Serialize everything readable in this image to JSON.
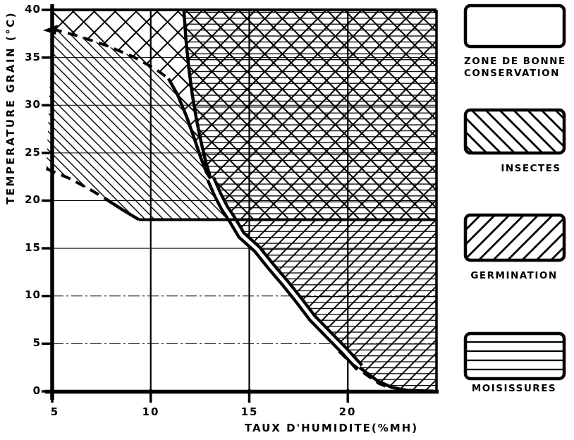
{
  "colors": {
    "ink": "#000000",
    "background": "#ffffff"
  },
  "chart_data": {
    "type": "area",
    "title": "",
    "xlabel": "TAUX D'HUMIDITE(%MH)",
    "ylabel": "TEMPERATURE GRAIN (°C)",
    "xlim": [
      5,
      24.5
    ],
    "ylim": [
      0,
      40
    ],
    "x_ticks": [
      5,
      10,
      15,
      20
    ],
    "y_ticks": [
      0,
      5,
      10,
      15,
      20,
      25,
      30,
      35,
      40
    ],
    "grid": true,
    "legend_position": "right",
    "zones": [
      {
        "name": "danger-cross-hatch-top-left",
        "patterns": [
          "cross-large"
        ],
        "points": [
          [
            5,
            40
          ],
          [
            5,
            38
          ],
          [
            6.25,
            37.3
          ],
          [
            7.7,
            36.3
          ],
          [
            9.1,
            35.1
          ],
          [
            10.25,
            33.8
          ],
          [
            10.9,
            32.8
          ],
          [
            11.36,
            31.1
          ],
          [
            11.8,
            28.9
          ],
          [
            12.18,
            26.7
          ],
          [
            12.54,
            24.5
          ],
          [
            12.82,
            23
          ],
          [
            13.04,
            22.3
          ],
          [
            12.79,
            24.1
          ],
          [
            12.57,
            26
          ],
          [
            12.32,
            28.5
          ],
          [
            12.11,
            31.1
          ],
          [
            11.93,
            33.9
          ],
          [
            11.79,
            36.8
          ],
          [
            11.68,
            40
          ]
        ]
      },
      {
        "name": "insectes-germination-moisissures-overlap",
        "patterns": [
          "cross-med",
          "horizontal"
        ],
        "points": [
          [
            11.68,
            40
          ],
          [
            11.79,
            36.8
          ],
          [
            11.93,
            33.9
          ],
          [
            12.11,
            31.1
          ],
          [
            12.32,
            28.5
          ],
          [
            12.57,
            26
          ],
          [
            12.79,
            24.1
          ],
          [
            13.04,
            22.3
          ],
          [
            13.4,
            20.6
          ],
          [
            13.75,
            19.2
          ],
          [
            14.15,
            17.97
          ],
          [
            24.5,
            17.97
          ],
          [
            24.5,
            40
          ]
        ]
      },
      {
        "name": "insectes-zone",
        "patterns": [
          "backslash"
        ],
        "points": [
          [
            5,
            38
          ],
          [
            6.25,
            37.3
          ],
          [
            7.7,
            36.3
          ],
          [
            9.1,
            35.1
          ],
          [
            10.25,
            33.8
          ],
          [
            10.9,
            32.8
          ],
          [
            11.36,
            31.1
          ],
          [
            11.8,
            28.9
          ],
          [
            12.18,
            26.7
          ],
          [
            12.54,
            24.5
          ],
          [
            12.82,
            23
          ],
          [
            13.04,
            22.3
          ],
          [
            13.4,
            20.6
          ],
          [
            13.75,
            19.2
          ],
          [
            14.15,
            17.97
          ],
          [
            9.4,
            18
          ],
          [
            8.6,
            19
          ],
          [
            7.7,
            20.2
          ],
          [
            6.9,
            21.2
          ],
          [
            5.9,
            22.3
          ],
          [
            4.7,
            23.35
          ]
        ]
      },
      {
        "name": "germination-moisissures-zone",
        "patterns": [
          "forwardslash",
          "horizontal"
        ],
        "points": [
          [
            14.15,
            17.97
          ],
          [
            14.6,
            16.4
          ],
          [
            15.4,
            14.9
          ],
          [
            16.1,
            13.1
          ],
          [
            16.8,
            11.4
          ],
          [
            17.5,
            9.6
          ],
          [
            18.2,
            7.7
          ],
          [
            19,
            6
          ],
          [
            19.8,
            4.3
          ],
          [
            20.6,
            2.5
          ],
          [
            21.5,
            1.1
          ],
          [
            22.25,
            0.4
          ],
          [
            23,
            0.1
          ],
          [
            24.35,
            0.02
          ],
          [
            24.5,
            0
          ],
          [
            24.5,
            17.97
          ]
        ]
      },
      {
        "name": "zone-bonne-conservation",
        "patterns": [],
        "points": []
      }
    ],
    "curves": [
      {
        "name": "insectes-upper-limit-dashed",
        "style": "dashed",
        "points": [
          [
            5,
            38
          ],
          [
            6.25,
            37.3
          ],
          [
            7.7,
            36.3
          ],
          [
            9.1,
            35.1
          ],
          [
            10.25,
            33.8
          ],
          [
            10.9,
            32.8
          ]
        ]
      },
      {
        "name": "insectes-upper-limit-solid",
        "style": "solid",
        "points": [
          [
            10.9,
            32.8
          ],
          [
            11.36,
            31.1
          ],
          [
            11.8,
            28.9
          ],
          [
            12.18,
            26.7
          ],
          [
            12.54,
            24.5
          ],
          [
            12.82,
            23
          ],
          [
            13.04,
            22.3
          ]
        ]
      },
      {
        "name": "conservation-steep-boundary",
        "style": "solid",
        "points": [
          [
            11.68,
            40
          ],
          [
            11.79,
            36.8
          ],
          [
            11.93,
            33.9
          ],
          [
            12.11,
            31.1
          ],
          [
            12.32,
            28.5
          ],
          [
            12.57,
            26
          ],
          [
            12.79,
            24.1
          ],
          [
            13.04,
            22.3
          ]
        ]
      },
      {
        "name": "conservation-main-boundary",
        "style": "double",
        "points": [
          [
            13.04,
            22.3
          ],
          [
            13.4,
            20.6
          ],
          [
            13.75,
            19.2
          ],
          [
            14.15,
            17.97
          ],
          [
            14.6,
            16.4
          ],
          [
            15.4,
            14.9
          ],
          [
            16.1,
            13.1
          ],
          [
            16.8,
            11.4
          ],
          [
            17.5,
            9.6
          ],
          [
            18.2,
            7.7
          ],
          [
            19,
            6
          ],
          [
            19.8,
            4.3
          ],
          [
            20.6,
            2.5
          ]
        ]
      },
      {
        "name": "conservation-main-boundary-tail",
        "style": "solid",
        "points": [
          [
            20.6,
            2.5
          ],
          [
            21.5,
            1.1
          ],
          [
            22.25,
            0.4
          ],
          [
            23,
            0.1
          ],
          [
            24.35,
            0.02
          ]
        ]
      },
      {
        "name": "main-boundary-dashed-tail",
        "style": "dashed",
        "points": [
          [
            19.55,
            4.2
          ],
          [
            20.2,
            2.9
          ],
          [
            20.9,
            1.8
          ],
          [
            21.6,
            0.8
          ],
          [
            22.2,
            0.3
          ]
        ]
      },
      {
        "name": "insectes-lower-limit-dashed",
        "style": "dashed",
        "points": [
          [
            4.7,
            23.35
          ],
          [
            5.9,
            22.3
          ],
          [
            6.9,
            21.2
          ],
          [
            7.7,
            20.2
          ]
        ]
      },
      {
        "name": "insectes-lower-limit-solid",
        "style": "solid",
        "points": [
          [
            7.7,
            20.2
          ],
          [
            8.6,
            19
          ],
          [
            9.4,
            18
          ]
        ]
      },
      {
        "name": "insectes-min-temp-line",
        "style": "thick",
        "points": [
          [
            9.4,
            18
          ],
          [
            24.5,
            18
          ]
        ]
      }
    ],
    "legend": [
      {
        "label": "ZONE DE BONNE CONSERVATION",
        "label_lines": [
          "ZONE DE BONNE",
          "CONSERVATION"
        ],
        "pattern": "none"
      },
      {
        "label": "INSECTES",
        "pattern": "backslash-hatch"
      },
      {
        "label": "GERMINATION",
        "pattern": "forwardslash-hatch"
      },
      {
        "label": "MOISISSURES",
        "pattern": "horizontal-lines"
      }
    ]
  }
}
